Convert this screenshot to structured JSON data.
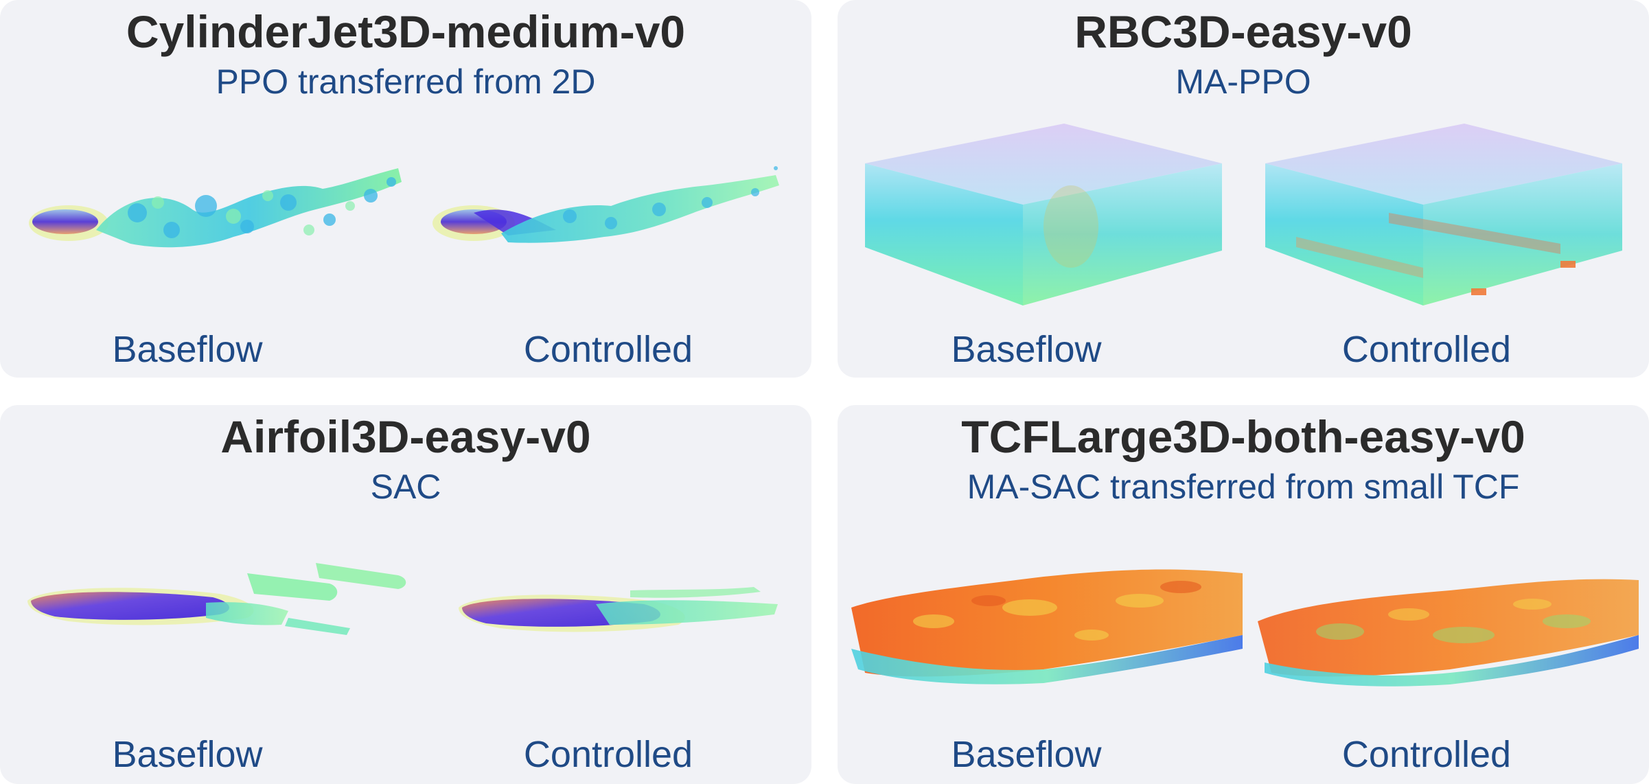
{
  "panels": [
    {
      "title": "CylinderJet3D-medium-v0",
      "subtitle": "PPO transferred from 2D",
      "left_label": "Baseflow",
      "right_label": "Controlled"
    },
    {
      "title": "RBC3D-easy-v0",
      "subtitle": "MA-PPO",
      "left_label": "Baseflow",
      "right_label": "Controlled"
    },
    {
      "title": "Airfoil3D-easy-v0",
      "subtitle": "SAC",
      "left_label": "Baseflow",
      "right_label": "Controlled"
    },
    {
      "title": "TCFLarge3D-both-easy-v0",
      "subtitle": "MA-SAC transferred from small TCF",
      "left_label": "Baseflow",
      "right_label": "Controlled"
    }
  ],
  "colors": {
    "panel_bg": "#f1f2f6",
    "title": "#2b2b2b",
    "subtitle": "#1f4a86",
    "label": "#1f4a86"
  }
}
